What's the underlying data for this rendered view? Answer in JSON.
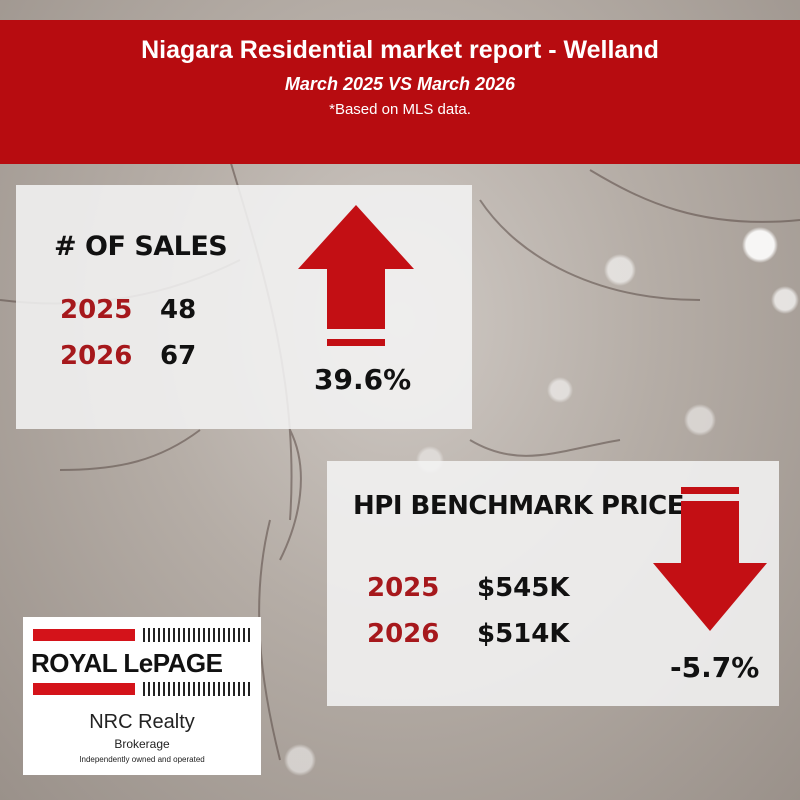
{
  "header": {
    "title": "Niagara Residential market report - Welland",
    "subtitle": "March 2025 VS March 2026",
    "note": "*Based on MLS data."
  },
  "sales_card": {
    "title": "# OF SALES",
    "rows": [
      {
        "year": "2025",
        "value": "48"
      },
      {
        "year": "2026",
        "value": "67"
      }
    ],
    "change": "39.6%",
    "direction": "up"
  },
  "hpi_card": {
    "title": "HPI BENCHMARK PRICE",
    "rows": [
      {
        "year": "2025",
        "value": "$545K"
      },
      {
        "year": "2026",
        "value": "$514K"
      }
    ],
    "change": "-5.7%",
    "direction": "down"
  },
  "logo": {
    "brand": "ROYAL LePAGE",
    "office": "NRC Realty",
    "type": "Brokerage",
    "tagline": "Independently owned and operated"
  },
  "colors": {
    "header_bg": "#b70c10",
    "arrow": "#c30f14",
    "year_text": "#a6181c"
  }
}
